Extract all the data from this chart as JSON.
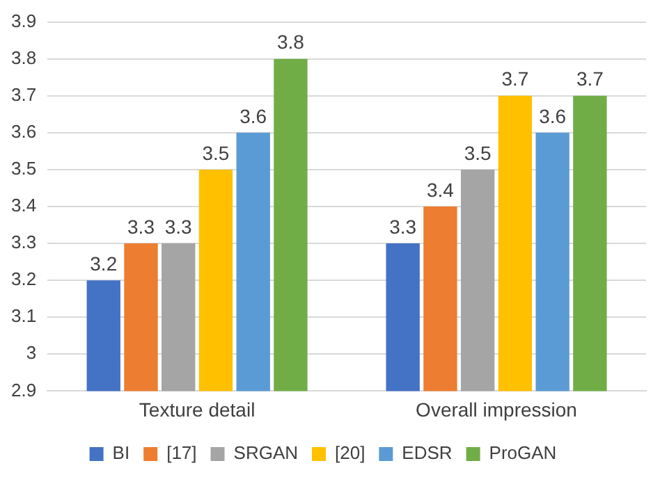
{
  "chart_data": {
    "type": "bar",
    "categories": [
      "Texture detail",
      "Overall impression"
    ],
    "series": [
      {
        "name": "BI",
        "color": "#4472c4",
        "values": [
          3.2,
          3.3
        ]
      },
      {
        "name": "[17]",
        "color": "#ed7d31",
        "values": [
          3.3,
          3.4
        ]
      },
      {
        "name": "SRGAN",
        "color": "#a5a5a5",
        "values": [
          3.3,
          3.5
        ]
      },
      {
        "name": "[20]",
        "color": "#ffc000",
        "values": [
          3.5,
          3.7
        ]
      },
      {
        "name": "EDSR",
        "color": "#5b9bd5",
        "values": [
          3.6,
          3.6
        ]
      },
      {
        "name": "ProGAN",
        "color": "#70ad47",
        "values": [
          3.8,
          3.7
        ]
      }
    ],
    "ylim": [
      2.9,
      3.9
    ],
    "yticks": [
      2.9,
      3,
      3.1,
      3.2,
      3.3,
      3.4,
      3.5,
      3.6,
      3.7,
      3.8,
      3.9
    ],
    "grid": "y",
    "legend": "bottom",
    "data_labels": true
  }
}
